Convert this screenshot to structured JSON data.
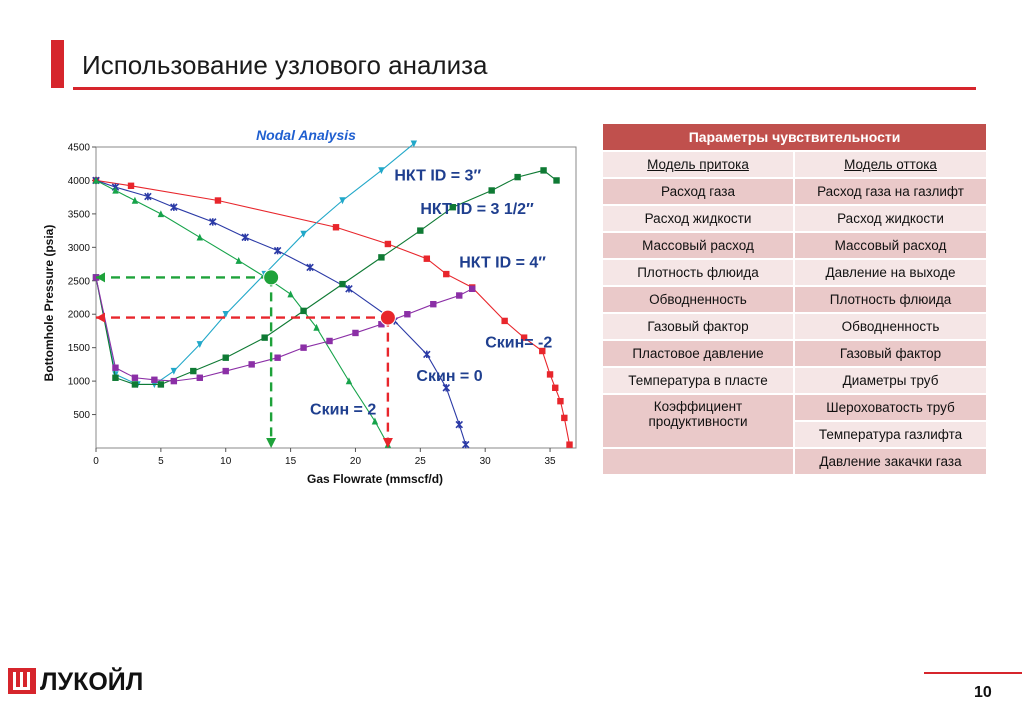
{
  "slide": {
    "title": "Использование узлового анализа",
    "page_number": "10",
    "logo_text": "ЛУКОЙЛ",
    "accent_color": "#d6252c"
  },
  "chart_data": {
    "type": "line",
    "title": "Nodal Analysis",
    "xlabel": "Gas Flowrate (mmscf/d)",
    "ylabel": "Bottomhole Pressure (psia)",
    "xlim": [
      0,
      37
    ],
    "ylim": [
      0,
      4500
    ],
    "xticks": [
      0,
      5,
      10,
      15,
      20,
      25,
      30,
      35
    ],
    "yticks": [
      500,
      1000,
      1500,
      2000,
      2500,
      3000,
      3500,
      4000,
      4500
    ],
    "grid": true,
    "series": [
      {
        "key": "ipr_red",
        "color": "#e8262c",
        "marker": "square",
        "x": [
          0,
          2.7,
          9.4,
          18.5,
          22.5,
          25.5,
          27,
          29,
          31.5,
          33,
          34.4,
          35,
          35.4,
          35.8,
          36.1,
          36.5
        ],
        "y": [
          4000,
          3920,
          3700,
          3300,
          3050,
          2830,
          2600,
          2400,
          1900,
          1650,
          1450,
          1100,
          900,
          700,
          450,
          50
        ]
      },
      {
        "key": "ipr_blue",
        "color": "#2b3aa6",
        "marker": "star",
        "x": [
          0,
          1.5,
          4,
          6,
          9,
          11.5,
          14,
          16.5,
          19.5,
          23,
          25.5,
          27,
          28,
          28.5
        ],
        "y": [
          4000,
          3900,
          3760,
          3600,
          3380,
          3150,
          2950,
          2700,
          2380,
          1900,
          1400,
          900,
          350,
          50
        ]
      },
      {
        "key": "ipr_green_tri",
        "color": "#16a34a",
        "marker": "triangle",
        "x": [
          0,
          1.5,
          3,
          5,
          8,
          11,
          13.5,
          15,
          17,
          19.5,
          21.5,
          22.5
        ],
        "y": [
          4000,
          3850,
          3700,
          3500,
          3150,
          2800,
          2500,
          2300,
          1800,
          1000,
          400,
          50
        ]
      },
      {
        "key": "tpr_cyan",
        "color": "#22a8c9",
        "marker": "triangle-down",
        "x": [
          0,
          1.5,
          3.2,
          4.5,
          6,
          8,
          10,
          13,
          16,
          19,
          22,
          24.5
        ],
        "y": [
          2550,
          1100,
          950,
          950,
          1150,
          1550,
          2000,
          2600,
          3200,
          3700,
          4150,
          4550
        ]
      },
      {
        "key": "tpr_green",
        "color": "#0f7a34",
        "marker": "square",
        "x": [
          0,
          1.5,
          3,
          5,
          7.5,
          10,
          13,
          16,
          19,
          22,
          25,
          27.5,
          30.5,
          32.5,
          34.5,
          35.5
        ],
        "y": [
          2550,
          1050,
          950,
          950,
          1150,
          1350,
          1650,
          2050,
          2450,
          2850,
          3250,
          3600,
          3850,
          4050,
          4150,
          4000
        ]
      },
      {
        "key": "tpr_purple",
        "color": "#8b2fa6",
        "marker": "square",
        "x": [
          0,
          1.5,
          3,
          4.5,
          6,
          8,
          10,
          12,
          14,
          16,
          18,
          20,
          22,
          24,
          26,
          28,
          29
        ],
        "y": [
          2550,
          1200,
          1050,
          1020,
          1000,
          1050,
          1150,
          1250,
          1350,
          1500,
          1600,
          1720,
          1850,
          2000,
          2150,
          2280,
          2380
        ]
      }
    ],
    "operating_points": [
      {
        "x": 13.5,
        "y": 2550,
        "color": "#1ea23a"
      },
      {
        "x": 22.5,
        "y": 1950,
        "color": "#e8262c"
      }
    ],
    "annotations": [
      {
        "text": "НКТ ID = 3″",
        "x": 23,
        "y": 4000
      },
      {
        "text": "НКТ ID = 3 1/2″",
        "x": 25,
        "y": 3500
      },
      {
        "text": "НКТ ID = 4″",
        "x": 28,
        "y": 2700
      },
      {
        "text": "Скин= -2",
        "x": 30,
        "y": 1500
      },
      {
        "text": "Скин = 0",
        "x": 24.7,
        "y": 1000
      },
      {
        "text": "Скин = 2",
        "x": 16.5,
        "y": 500
      }
    ]
  },
  "table": {
    "header": "Параметры чувствительности",
    "col_inflow": "Модель притока",
    "col_outflow": "Модель оттока",
    "rows": [
      {
        "inflow": "Расход газа",
        "outflow": "Расход газа на газлифт"
      },
      {
        "inflow": "Расход жидкости",
        "outflow": "Расход жидкости"
      },
      {
        "inflow": "Массовый расход",
        "outflow": "Массовый расход"
      },
      {
        "inflow": "Плотность флюида",
        "outflow": "Давление на выходе"
      },
      {
        "inflow": "Обводненность",
        "outflow": "Плотность флюида"
      },
      {
        "inflow": "Газовый фактор",
        "outflow": "Обводненность"
      },
      {
        "inflow": "Пластовое давление",
        "outflow": "Газовый фактор"
      },
      {
        "inflow": "Температура в пласте",
        "outflow": "Диаметры труб"
      }
    ],
    "last_inflow": "Коэффициент продуктивности",
    "last_outflow": [
      "Шероховатость труб",
      "Температура газлифта",
      "Давление закачки газа"
    ]
  }
}
